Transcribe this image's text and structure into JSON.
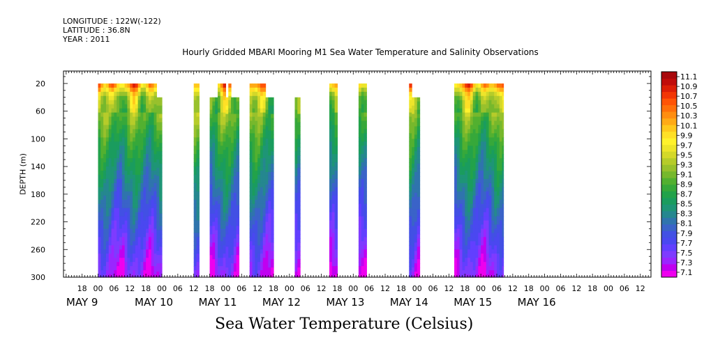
{
  "header": {
    "longitude": "LONGITUDE : 122W(-122)",
    "latitude": "LATITUDE : 36.8N",
    "year": "YEAR : 2011"
  },
  "chart_data": {
    "type": "heatmap",
    "title": "Hourly Gridded MBARI Mooring M1 Sea Water Temperature and Salinity Observations",
    "xlabel": "",
    "ylabel": "DEPTH (m)",
    "bottom_title": "Sea Water Temperature (Celsius)",
    "x_tick_labels": [
      "18",
      "00",
      "06",
      "12",
      "18",
      "00",
      "06",
      "12",
      "18",
      "00",
      "06",
      "12",
      "18",
      "00",
      "06",
      "12",
      "18",
      "00",
      "06",
      "12",
      "18",
      "00",
      "06",
      "12",
      "18",
      "00",
      "06",
      "12",
      "18",
      "00",
      "06",
      "12",
      "18",
      "00",
      "06",
      "12"
    ],
    "x_tick_hours": [
      18,
      24,
      30,
      36,
      42,
      48,
      54,
      60,
      66,
      72,
      78,
      84,
      90,
      96,
      102,
      108,
      114,
      120,
      126,
      132,
      138,
      144,
      150,
      156,
      162,
      168,
      174,
      180,
      186,
      192,
      198,
      204,
      210,
      216,
      222,
      228
    ],
    "date_labels": [
      {
        "label": "MAY  9",
        "hour": 18
      },
      {
        "label": "MAY 10",
        "hour": 45
      },
      {
        "label": "MAY 11",
        "hour": 69
      },
      {
        "label": "MAY 12",
        "hour": 93
      },
      {
        "label": "MAY 13",
        "hour": 117
      },
      {
        "label": "MAY 14",
        "hour": 141
      },
      {
        "label": "MAY 15",
        "hour": 165
      },
      {
        "label": "MAY 16",
        "hour": 189
      }
    ],
    "x_range_hours": [
      11,
      232
    ],
    "y_ticks": [
      20,
      60,
      100,
      140,
      180,
      220,
      260,
      300
    ],
    "y_range": [
      300,
      2
    ],
    "colorbar": {
      "min": 7.0,
      "max": 11.2,
      "labels": [
        "11.1",
        "10.9",
        "10.7",
        "10.5",
        "10.3",
        "10.1",
        "9.9",
        "9.7",
        "9.5",
        "9.3",
        "9.1",
        "8.9",
        "8.7",
        "8.5",
        "8.3",
        "8.1",
        "7.9",
        "7.7",
        "7.5",
        "7.3",
        "7.1"
      ],
      "colors": [
        "#ee00ee",
        "#c000f0",
        "#9a26ff",
        "#7e3bff",
        "#623fff",
        "#4a48f0",
        "#4250e4",
        "#3a63c8",
        "#2f74ad",
        "#25878f",
        "#1e9576",
        "#1a9c5e",
        "#22a24a",
        "#36a83a",
        "#52b030",
        "#76b82c",
        "#98c12c",
        "#b6cc2a",
        "#d4d829",
        "#ede52a",
        "#fff22c",
        "#ffe026",
        "#ffc81c",
        "#ffaa16",
        "#ff8e10",
        "#ff700a",
        "#ff5406",
        "#f23604",
        "#dc1e06",
        "#c00c0a",
        "#a8080c"
      ]
    },
    "segments": [
      {
        "start": 24,
        "end": 46,
        "top": 20
      },
      {
        "start": 46,
        "end": 48,
        "top": 40
      },
      {
        "start": 60,
        "end": 62,
        "top": 20
      },
      {
        "start": 66,
        "end": 69,
        "top": 40
      },
      {
        "start": 69,
        "end": 72,
        "top": 20
      },
      {
        "start": 72,
        "end": 73,
        "top": 40
      },
      {
        "start": 73,
        "end": 74,
        "top": 20
      },
      {
        "start": 74,
        "end": 77,
        "top": 40
      },
      {
        "start": 81,
        "end": 87,
        "top": 20
      },
      {
        "start": 87,
        "end": 90,
        "top": 40
      },
      {
        "start": 98,
        "end": 100,
        "top": 40
      },
      {
        "start": 111,
        "end": 114,
        "top": 20
      },
      {
        "start": 122,
        "end": 125,
        "top": 20
      },
      {
        "start": 141,
        "end": 142,
        "top": 20
      },
      {
        "start": 142,
        "end": 145,
        "top": 40
      },
      {
        "start": 158,
        "end": 176.5,
        "top": 20
      }
    ]
  }
}
